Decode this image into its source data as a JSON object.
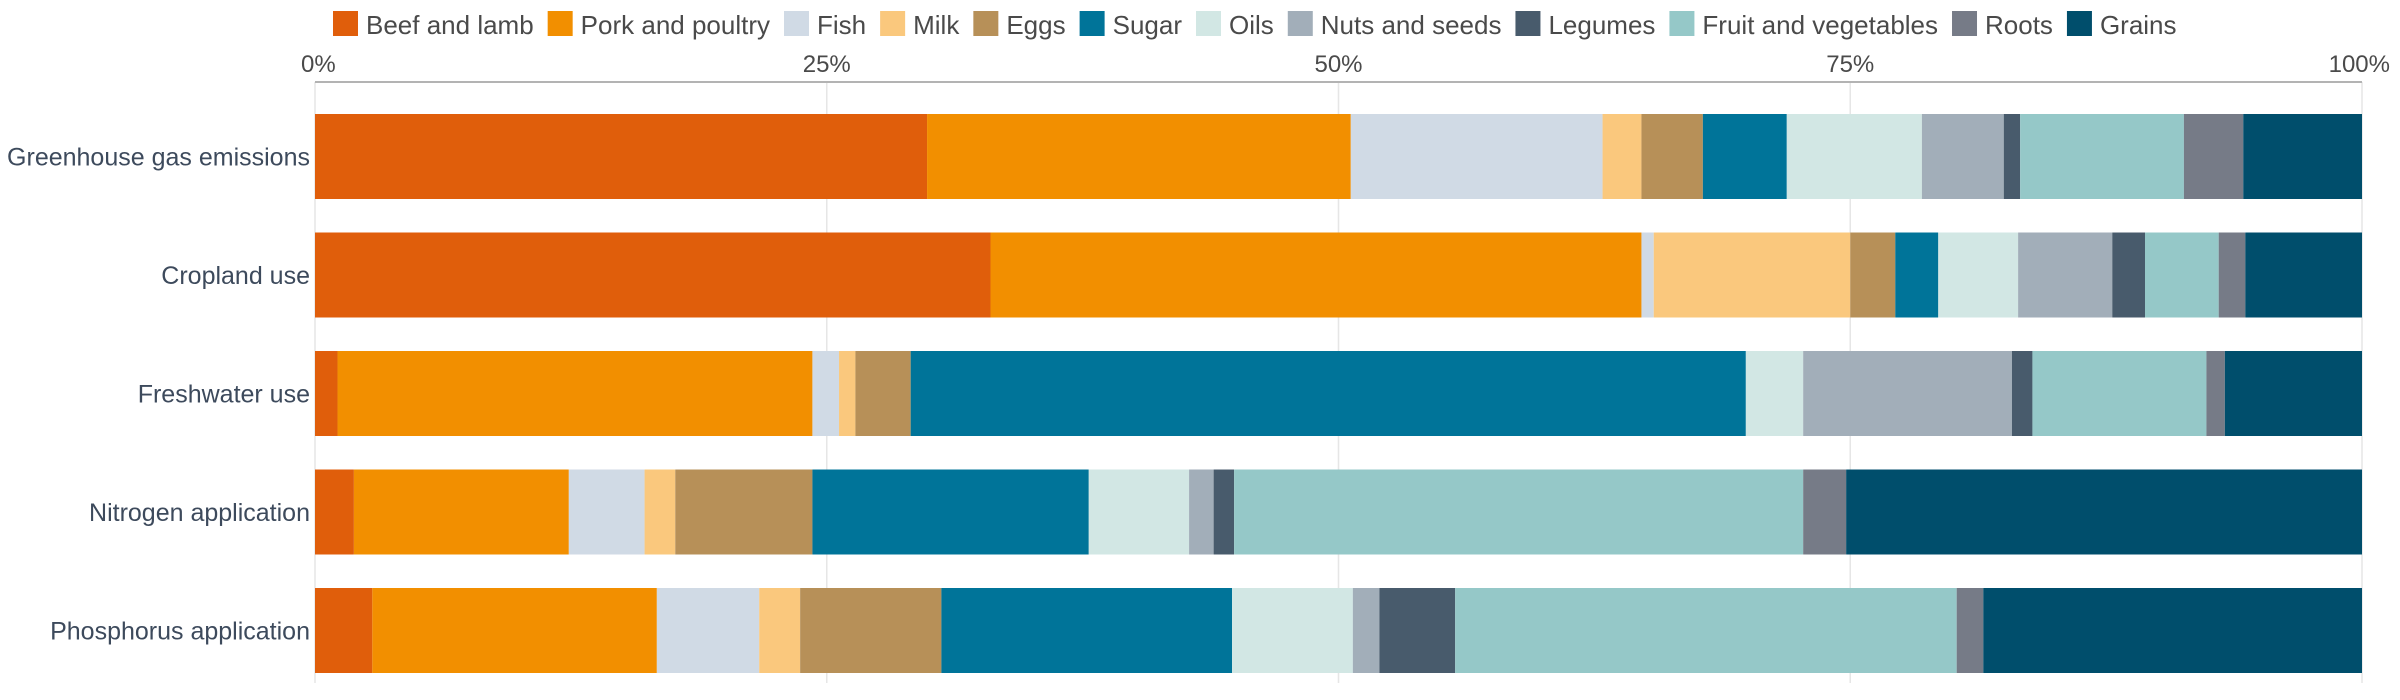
{
  "chart_data": {
    "type": "bar",
    "orientation": "horizontal",
    "stacked": true,
    "normalized": true,
    "xlim": [
      0,
      100
    ],
    "x_ticks": [
      {
        "value": 0,
        "label": "0%"
      },
      {
        "value": 25,
        "label": "25%"
      },
      {
        "value": 50,
        "label": "50%"
      },
      {
        "value": 75,
        "label": "75%"
      },
      {
        "value": 100,
        "label": "100%"
      }
    ],
    "grid": true,
    "legend_position": "top",
    "categories": [
      "Greenhouse gas emissions",
      "Cropland use",
      "Freshwater use",
      "Nitrogen application",
      "Phosphorus application"
    ],
    "series": [
      {
        "name": "Beef and lamb",
        "color": "#e05e0b",
        "values": [
          29.9,
          33.0,
          1.1,
          1.9,
          2.8
        ]
      },
      {
        "name": "Pork and poultry",
        "color": "#f28f00",
        "values": [
          20.7,
          31.8,
          23.2,
          10.5,
          13.9
        ]
      },
      {
        "name": "Fish",
        "color": "#d0dae5",
        "values": [
          12.3,
          0.6,
          1.3,
          3.7,
          5.0
        ]
      },
      {
        "name": "Milk",
        "color": "#fac87d",
        "values": [
          1.9,
          9.6,
          0.8,
          1.5,
          2.0
        ]
      },
      {
        "name": "Eggs",
        "color": "#b79058",
        "values": [
          3.0,
          2.2,
          2.7,
          6.7,
          6.9
        ]
      },
      {
        "name": "Sugar",
        "color": "#007499",
        "values": [
          4.1,
          2.1,
          40.8,
          13.5,
          14.2
        ]
      },
      {
        "name": "Oils",
        "color": "#d2e7e4",
        "values": [
          6.6,
          3.9,
          2.8,
          4.9,
          5.9
        ]
      },
      {
        "name": "Nuts and seeds",
        "color": "#a2aeb9",
        "values": [
          4.0,
          4.6,
          10.2,
          1.2,
          1.3
        ]
      },
      {
        "name": "Legumes",
        "color": "#485b6c",
        "values": [
          0.8,
          1.6,
          1.0,
          1.0,
          3.7
        ]
      },
      {
        "name": "Fruit and vegetables",
        "color": "#95c8c8",
        "values": [
          8.0,
          3.6,
          8.5,
          27.8,
          24.5
        ]
      },
      {
        "name": "Roots",
        "color": "#767b87",
        "values": [
          2.9,
          1.3,
          0.9,
          2.1,
          1.3
        ]
      },
      {
        "name": "Grains",
        "color": "#004e6c",
        "values": [
          5.8,
          5.7,
          6.7,
          25.2,
          18.5
        ]
      }
    ]
  }
}
